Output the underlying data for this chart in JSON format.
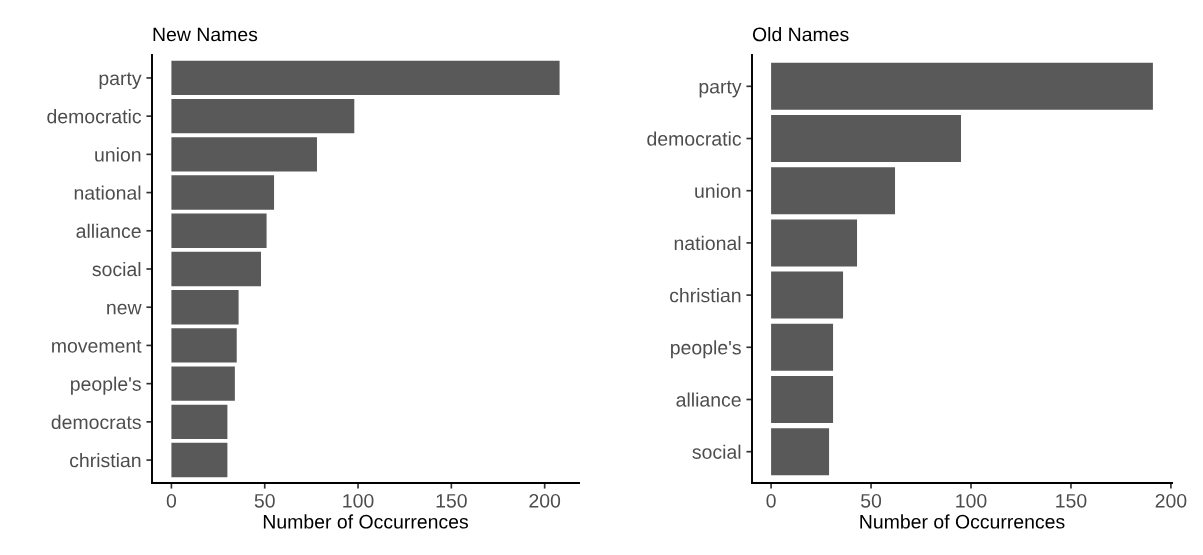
{
  "chart_data": [
    {
      "type": "bar",
      "orientation": "horizontal",
      "title": "New Names",
      "xlabel": "Number of Occurrences",
      "categories": [
        "party",
        "democratic",
        "union",
        "national",
        "alliance",
        "social",
        "new",
        "movement",
        "people's",
        "democrats",
        "christian"
      ],
      "values": [
        208,
        98,
        78,
        55,
        51,
        48,
        36,
        35,
        34,
        30,
        30
      ],
      "color": "#595959",
      "xlim": [
        -10.4,
        218.4
      ],
      "xticks": [
        0,
        50,
        100,
        150,
        200
      ]
    },
    {
      "type": "bar",
      "orientation": "horizontal",
      "title": "Old Names",
      "xlabel": "Number of Occurrences",
      "categories": [
        "party",
        "democratic",
        "union",
        "national",
        "christian",
        "people's",
        "alliance",
        "social"
      ],
      "values": [
        191,
        95,
        62,
        43,
        36,
        31,
        31,
        29
      ],
      "color": "#595959",
      "xlim": [
        -9.55,
        200.55
      ],
      "xticks": [
        0,
        50,
        100,
        150,
        200
      ]
    }
  ]
}
